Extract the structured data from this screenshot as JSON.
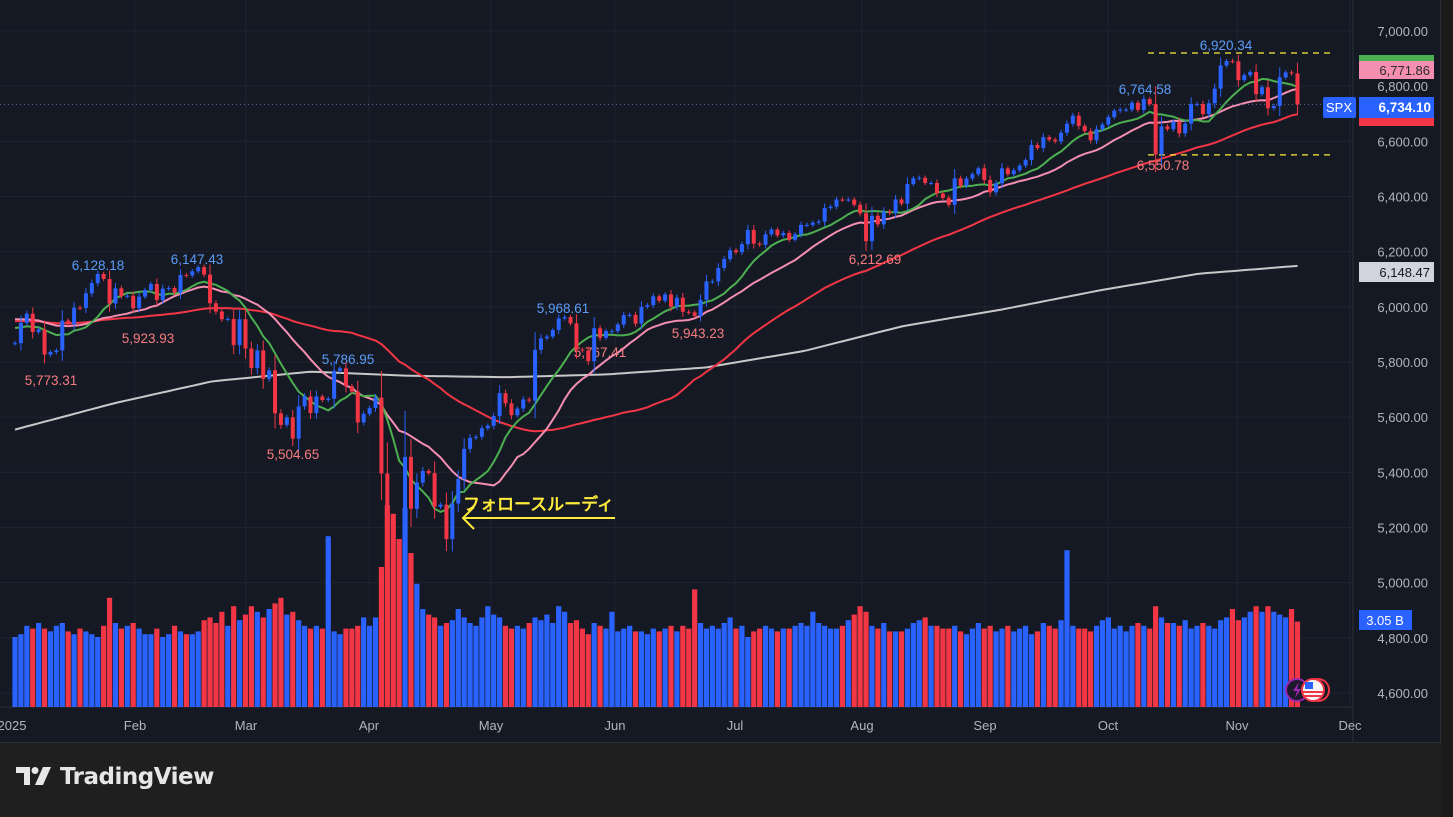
{
  "symbol": "SPX",
  "branding": "TradingView",
  "chart_data": {
    "type": "candlestick",
    "symbol": "SPX",
    "y_axis": {
      "range": [
        4600,
        7000
      ],
      "ticks": [
        "7,000.00",
        "6,800.00",
        "6,600.00",
        "6,400.00",
        "6,200.00",
        "6,000.00",
        "5,800.00",
        "5,600.00",
        "5,400.00",
        "5,200.00",
        "5,000.00",
        "4,800.00",
        "4,600.00"
      ],
      "tick_values": [
        7000,
        6800,
        6600,
        6400,
        6200,
        6000,
        5800,
        5600,
        5400,
        5200,
        5000,
        4800,
        4600
      ]
    },
    "x_axis": {
      "labels": [
        "2025",
        "Feb",
        "Mar",
        "Apr",
        "May",
        "Jun",
        "Jul",
        "Aug",
        "Sep",
        "Oct",
        "Nov",
        "Dec"
      ]
    },
    "grid": true,
    "colors": {
      "up": "#2962ff",
      "down": "#f23645",
      "ma_short": "#4caf50",
      "ma_mid": "#f48fb1",
      "ma_50": "#f23645",
      "ma_200": "#c8c8c8",
      "annotation_high": "#5b9cf6",
      "annotation_low": "#f77c80",
      "highlight": "#ffeb3b"
    },
    "months": [
      {
        "name": "Jan",
        "closes": [
          5868,
          5942,
          5975,
          5909,
          5918,
          5827,
          5836,
          5842,
          5950,
          5937,
          5997,
          5996,
          6049,
          6086,
          6119,
          6101,
          6012,
          6067,
          6039,
          6040
        ],
        "volume_b": [
          2.5,
          2.6,
          2.9,
          2.8,
          3.0,
          2.8,
          2.7,
          2.9,
          3.0,
          2.7,
          2.6,
          2.8,
          2.7,
          2.6,
          2.5,
          2.9,
          3.9,
          3.0,
          2.8,
          2.9
        ]
      },
      {
        "name": "Feb",
        "closes": [
          5995,
          6037,
          6061,
          6083,
          6025,
          6066,
          6068,
          6051,
          6115,
          6114,
          6129,
          6144,
          6117,
          6013,
          5983,
          5955,
          5956,
          5861,
          5955
        ],
        "volume_b": [
          3.0,
          2.8,
          2.6,
          2.6,
          2.8,
          2.5,
          2.6,
          2.9,
          2.7,
          2.6,
          2.6,
          2.7,
          3.1,
          3.2,
          3.0,
          3.4,
          2.9,
          3.6,
          3.1
        ]
      },
      {
        "name": "Mar",
        "closes": [
          5849,
          5778,
          5842,
          5739,
          5770,
          5614,
          5572,
          5599,
          5522,
          5639,
          5675,
          5615,
          5675,
          5662,
          5667,
          5768,
          5777,
          5712,
          5693,
          5581,
          5612
        ],
        "volume_b": [
          3.3,
          3.6,
          3.4,
          3.2,
          3.5,
          3.7,
          3.9,
          3.3,
          3.4,
          3.1,
          2.9,
          2.8,
          2.9,
          2.8,
          6.1,
          2.7,
          2.6,
          2.8,
          2.8,
          2.9,
          3.2
        ]
      },
      {
        "name": "Apr",
        "closes": [
          5633,
          5671,
          5396,
          5074,
          5062,
          4982,
          5456,
          5268,
          5363,
          5405,
          5397,
          5275,
          5283,
          5158,
          5287,
          5376,
          5485,
          5525,
          5529,
          5560,
          5569
        ],
        "volume_b": [
          2.9,
          3.2,
          5.0,
          7.2,
          6.9,
          6.0,
          7.1,
          5.5,
          4.4,
          3.5,
          3.3,
          3.2,
          2.9,
          3.0,
          3.1,
          3.5,
          3.2,
          3.0,
          2.9,
          3.2,
          3.6
        ]
      },
      {
        "name": "May",
        "closes": [
          5604,
          5687,
          5650,
          5607,
          5631,
          5664,
          5660,
          5844,
          5886,
          5892,
          5916,
          5958,
          5963,
          5940,
          5845,
          5842,
          5803,
          5922,
          5888,
          5912,
          5912
        ],
        "volume_b": [
          3.3,
          3.2,
          2.9,
          2.8,
          2.9,
          2.8,
          3.0,
          3.2,
          3.1,
          3.3,
          3.0,
          3.6,
          3.4,
          3.0,
          3.1,
          2.8,
          2.6,
          3.0,
          2.9,
          2.8,
          3.4
        ]
      },
      {
        "name": "Jun",
        "closes": [
          5936,
          5970,
          5971,
          5939,
          6000,
          6006,
          6038,
          6022,
          6045,
          6000,
          6033,
          5982,
          5980,
          5967,
          6025,
          6092,
          6092,
          6141,
          6173,
          6205
        ],
        "volume_b": [
          2.7,
          2.8,
          2.9,
          2.7,
          2.7,
          2.6,
          2.8,
          2.7,
          2.8,
          2.9,
          2.7,
          2.9,
          2.8,
          4.2,
          3.0,
          2.8,
          2.9,
          2.8,
          3.0,
          3.2
        ]
      },
      {
        "name": "Jul",
        "closes": [
          6198,
          6227,
          6279,
          6229,
          6225,
          6263,
          6280,
          6259,
          6268,
          6243,
          6263,
          6297,
          6297,
          6305,
          6309,
          6358,
          6363,
          6389,
          6388,
          6389,
          6370,
          6339
        ],
        "volume_b": [
          2.8,
          2.9,
          2.5,
          2.7,
          2.8,
          2.9,
          2.8,
          2.7,
          2.8,
          2.8,
          2.9,
          3.0,
          2.9,
          3.4,
          3.0,
          2.9,
          2.8,
          2.8,
          2.9,
          3.1,
          3.3,
          3.6
        ]
      },
      {
        "name": "Aug",
        "closes": [
          6238,
          6330,
          6299,
          6345,
          6340,
          6389,
          6374,
          6445,
          6466,
          6468,
          6449,
          6449,
          6411,
          6395,
          6370,
          6466,
          6439,
          6465,
          6481,
          6502,
          6460
        ],
        "volume_b": [
          3.4,
          2.9,
          2.8,
          3.0,
          2.7,
          2.7,
          2.7,
          2.8,
          3.0,
          3.1,
          3.2,
          2.9,
          2.9,
          2.8,
          2.8,
          2.9,
          2.7,
          2.6,
          2.8,
          3.0,
          2.8
        ]
      },
      {
        "name": "Sep",
        "closes": [
          6415,
          6448,
          6502,
          6481,
          6495,
          6512,
          6532,
          6587,
          6576,
          6615,
          6606,
          6600,
          6631,
          6664,
          6693,
          6656,
          6637,
          6604,
          6644,
          6661,
          6688
        ],
        "volume_b": [
          2.9,
          2.7,
          2.8,
          2.9,
          2.7,
          2.8,
          2.9,
          2.6,
          2.7,
          3.0,
          2.9,
          2.8,
          3.1,
          5.6,
          2.9,
          2.8,
          2.8,
          2.7,
          2.9,
          3.1,
          3.2
        ]
      },
      {
        "name": "Oct",
        "closes": [
          6711,
          6715,
          6715,
          6740,
          6714,
          6753,
          6735,
          6552,
          6654,
          6644,
          6671,
          6629,
          6664,
          6735,
          6735,
          6699,
          6738,
          6791,
          6875,
          6891,
          6890,
          6822,
          6840
        ],
        "volume_b": [
          2.8,
          2.9,
          2.7,
          2.9,
          3.0,
          2.9,
          2.8,
          3.6,
          3.2,
          3.0,
          3.0,
          2.9,
          3.1,
          2.8,
          2.9,
          3.0,
          2.9,
          2.8,
          3.1,
          3.2,
          3.5,
          3.1,
          3.2
        ]
      },
      {
        "name": "Nov",
        "closes": [
          6851,
          6771,
          6796,
          6720,
          6728,
          6832,
          6850,
          6846,
          6734
        ],
        "volume_b": [
          3.4,
          3.6,
          3.4,
          3.6,
          3.4,
          3.3,
          3.2,
          3.5,
          3.05
        ]
      }
    ],
    "ma_200_points": [
      5555,
      5650,
      5730,
      5765,
      5750,
      5745,
      5755,
      5780,
      5840,
      5930,
      5990,
      6060,
      6120,
      6148.47
    ],
    "annotations": [
      {
        "text": "6,128.18",
        "kind": "high"
      },
      {
        "text": "6,147.43",
        "kind": "high"
      },
      {
        "text": "5,923.93",
        "kind": "low"
      },
      {
        "text": "5,773.31",
        "kind": "low"
      },
      {
        "text": "5,786.95",
        "kind": "high"
      },
      {
        "text": "5,504.65",
        "kind": "low"
      },
      {
        "text": "5,968.61",
        "kind": "high"
      },
      {
        "text": "5,767.41",
        "kind": "low"
      },
      {
        "text": "5,943.23",
        "kind": "low"
      },
      {
        "text": "6,212.69",
        "kind": "low"
      },
      {
        "text": "6,764.58",
        "kind": "high"
      },
      {
        "text": "6,550.78",
        "kind": "low"
      },
      {
        "text": "6,920.34",
        "kind": "high"
      }
    ],
    "highlight_lines": [
      6920.34,
      6550.78
    ],
    "callout": "フォロースルーディ",
    "last_price": "6,734.10",
    "last_price_value": 6734.1,
    "ma_mid_label": "6,771.86",
    "ma_200_label": "6,148.47",
    "ma_200_value": 6148.47,
    "volume_label": "3.05 B"
  }
}
